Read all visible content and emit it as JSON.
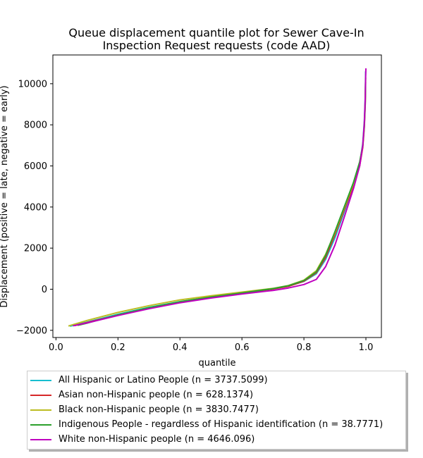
{
  "chart_data": {
    "type": "line",
    "title_lines": [
      "Queue displacement quantile plot for Sewer Cave-In",
      "Inspection Request  requests (code AAD)"
    ],
    "xlabel": "quantile",
    "ylabel": "Displacement (positive = late, negative = early)",
    "xlim": [
      -0.01,
      1.05
    ],
    "ylim": [
      -2350,
      11400
    ],
    "xticks": [
      0.0,
      0.2,
      0.4,
      0.6,
      0.8,
      1.0
    ],
    "xtick_labels": [
      "0.0",
      "0.2",
      "0.4",
      "0.6",
      "0.8",
      "1.0"
    ],
    "yticks": [
      -2000,
      0,
      2000,
      4000,
      6000,
      8000,
      10000
    ],
    "ytick_labels": [
      "−2000",
      "0",
      "2000",
      "4000",
      "6000",
      "8000",
      "10000"
    ],
    "grid": false,
    "legend_position": "below plot",
    "series": [
      {
        "name": "All Hispanic or Latino People (n = 3737.5099)",
        "color": "#17becf",
        "x": [
          0.045,
          0.1,
          0.2,
          0.3,
          0.4,
          0.5,
          0.6,
          0.7,
          0.75,
          0.8,
          0.84,
          0.87,
          0.9,
          0.93,
          0.96,
          0.98,
          0.99,
          0.995,
          0.998,
          0.999
        ],
        "y": [
          -1800,
          -1600,
          -1220,
          -880,
          -600,
          -380,
          -170,
          20,
          150,
          380,
          750,
          1450,
          2500,
          3750,
          5050,
          6100,
          7100,
          8200,
          9400,
          10600
        ]
      },
      {
        "name": "Asian non-Hispanic people (n = 628.1374)",
        "color": "#d62728",
        "x": [
          0.06,
          0.1,
          0.2,
          0.3,
          0.4,
          0.5,
          0.6,
          0.7,
          0.75,
          0.8,
          0.84,
          0.87,
          0.9,
          0.93,
          0.96,
          0.98,
          0.99,
          0.995,
          0.998,
          0.999
        ],
        "y": [
          -1770,
          -1620,
          -1260,
          -920,
          -630,
          -400,
          -190,
          10,
          140,
          390,
          800,
          1550,
          2650,
          3850,
          5050,
          6000,
          6900,
          7900,
          9000,
          10100
        ]
      },
      {
        "name": "Black non-Hispanic people (n = 3830.7477)",
        "color": "#bcbd22",
        "x": [
          0.04,
          0.1,
          0.2,
          0.3,
          0.4,
          0.5,
          0.6,
          0.7,
          0.75,
          0.8,
          0.84,
          0.87,
          0.9,
          0.93,
          0.96,
          0.98,
          0.99,
          0.995,
          0.998,
          0.999
        ],
        "y": [
          -1790,
          -1520,
          -1130,
          -800,
          -520,
          -320,
          -140,
          40,
          180,
          440,
          900,
          1700,
          2750,
          3950,
          5150,
          6100,
          7000,
          8000,
          9200,
          10300
        ]
      },
      {
        "name": "Indigenous People - regardless of Hispanic identification (n = 38.7771)",
        "color": "#2ca02c",
        "x": [
          0.07,
          0.1,
          0.2,
          0.3,
          0.4,
          0.5,
          0.6,
          0.7,
          0.75,
          0.8,
          0.84,
          0.87,
          0.9,
          0.93,
          0.96,
          0.98,
          0.99,
          0.995,
          0.998,
          0.999
        ],
        "y": [
          -1760,
          -1650,
          -1250,
          -900,
          -610,
          -380,
          -180,
          30,
          170,
          420,
          850,
          1650,
          2800,
          4000,
          5200,
          6200,
          7000,
          8000,
          9100,
          10300
        ]
      },
      {
        "name": "White non-Hispanic people (n = 4646.096)",
        "color": "#bf00bf",
        "x": [
          0.055,
          0.1,
          0.2,
          0.3,
          0.4,
          0.5,
          0.6,
          0.7,
          0.75,
          0.8,
          0.84,
          0.87,
          0.9,
          0.93,
          0.96,
          0.98,
          0.99,
          0.995,
          0.998,
          0.999,
          1.0
        ],
        "y": [
          -1780,
          -1640,
          -1280,
          -950,
          -660,
          -430,
          -230,
          -60,
          60,
          230,
          480,
          1100,
          2150,
          3500,
          4900,
          6000,
          7000,
          8100,
          9300,
          10300,
          10750
        ]
      }
    ]
  }
}
